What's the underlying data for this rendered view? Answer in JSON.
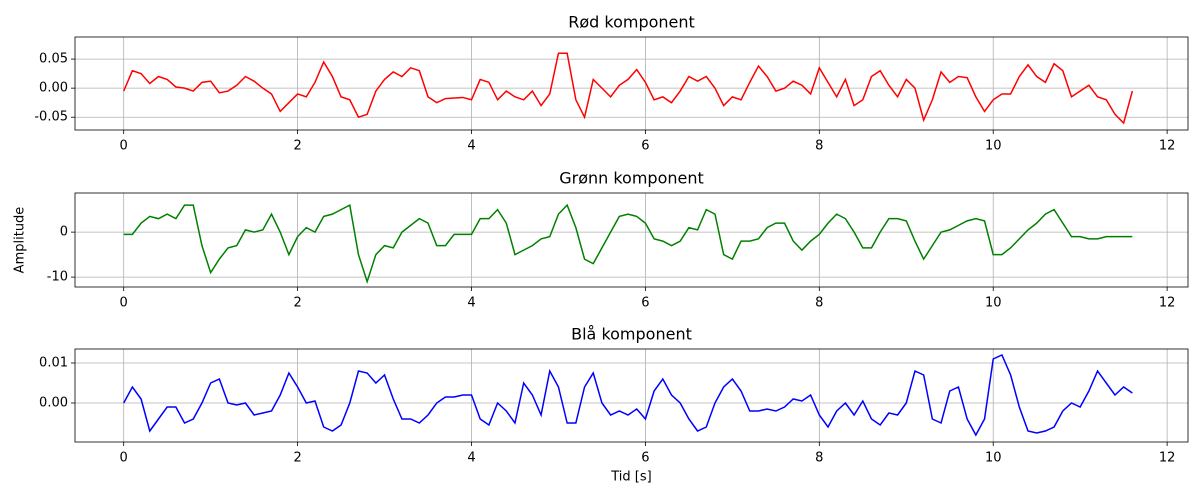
{
  "chart_data": [
    {
      "type": "line",
      "title": "Rød komponent",
      "x": [
        0,
        0.1,
        0.2,
        0.3,
        0.4,
        0.5,
        0.6,
        0.7,
        0.8,
        0.9,
        1,
        1.1,
        1.2,
        1.3,
        1.4,
        1.5,
        1.6,
        1.7,
        1.8,
        1.9,
        2,
        2.1,
        2.2,
        2.3,
        2.4,
        2.5,
        2.6,
        2.7,
        2.8,
        2.9,
        3,
        3.1,
        3.2,
        3.3,
        3.4,
        3.5,
        3.6,
        3.7,
        3.8,
        3.9,
        4,
        4.1,
        4.2,
        4.3,
        4.4,
        4.5,
        4.6,
        4.7,
        4.8,
        4.9,
        5,
        5.1,
        5.2,
        5.3,
        5.4,
        5.5,
        5.6,
        5.7,
        5.8,
        5.9,
        6,
        6.1,
        6.2,
        6.3,
        6.4,
        6.5,
        6.6,
        6.7,
        6.8,
        6.9,
        7,
        7.1,
        7.2,
        7.3,
        7.4,
        7.5,
        7.6,
        7.7,
        7.8,
        7.9,
        8,
        8.1,
        8.2,
        8.3,
        8.4,
        8.5,
        8.6,
        8.7,
        8.8,
        8.9,
        9,
        9.1,
        9.2,
        9.3,
        9.4,
        9.5,
        9.6,
        9.7,
        9.8,
        9.9,
        10,
        10.1,
        10.2,
        10.3,
        10.4,
        10.5,
        10.6,
        10.7,
        10.8,
        10.9,
        11,
        11.1,
        11.2,
        11.3,
        11.4,
        11.5,
        11.6
      ],
      "series": [
        {
          "color": "#ff0000",
          "values": [
            -0.005,
            0.03,
            0.025,
            0.008,
            0.02,
            0.015,
            0.002,
            0,
            -0.005,
            0.01,
            0.012,
            -0.008,
            -0.005,
            0.005,
            0.02,
            0.012,
            0,
            -0.01,
            -0.04,
            -0.025,
            -0.01,
            -0.015,
            0.01,
            0.045,
            0.02,
            -0.015,
            -0.02,
            -0.05,
            -0.045,
            -0.005,
            0.015,
            0.028,
            0.02,
            0.035,
            0.03,
            -0.015,
            -0.025,
            -0.018,
            -0.017,
            -0.016,
            -0.02,
            0.015,
            0.01,
            -0.02,
            -0.005,
            -0.015,
            -0.02,
            -0.005,
            -0.03,
            -0.01,
            0.06,
            0.06,
            -0.02,
            -0.05,
            0.015,
            0,
            -0.015,
            0.005,
            0.015,
            0.032,
            0.01,
            -0.02,
            -0.015,
            -0.025,
            -0.005,
            0.02,
            0.012,
            0.02,
            0,
            -0.03,
            -0.015,
            -0.02,
            0.01,
            0.038,
            0.02,
            -0.005,
            0,
            0.012,
            0.005,
            -0.01,
            0.035,
            0.01,
            -0.015,
            0.015,
            -0.03,
            -0.02,
            0.02,
            0.03,
            0.005,
            -0.015,
            0.015,
            0,
            -0.055,
            -0.02,
            0.028,
            0.01,
            0.02,
            0.018,
            -0.015,
            -0.04,
            -0.02,
            -0.01,
            -0.01,
            0.02,
            0.04,
            0.02,
            0.01,
            0.042,
            0.03,
            -0.015,
            -0.005,
            0.005,
            -0.015,
            -0.02,
            -0.045,
            -0.06,
            -0.005
          ]
        }
      ],
      "xlim": [
        -0.56,
        12.24
      ],
      "xticks": [
        0,
        2,
        4,
        6,
        8,
        10,
        12
      ],
      "ylim": [
        -0.072,
        0.088
      ],
      "yticks": [
        -0.05,
        {
          "value": 0,
          "label": "0.00"
        },
        0.05
      ],
      "grid": true
    },
    {
      "type": "line",
      "title": "Grønn komponent",
      "ylabel": "Amplitude",
      "x": [
        0,
        0.1,
        0.2,
        0.3,
        0.4,
        0.5,
        0.6,
        0.7,
        0.8,
        0.9,
        1,
        1.1,
        1.2,
        1.3,
        1.4,
        1.5,
        1.6,
        1.7,
        1.8,
        1.9,
        2,
        2.1,
        2.2,
        2.3,
        2.4,
        2.5,
        2.6,
        2.7,
        2.8,
        2.9,
        3,
        3.1,
        3.2,
        3.3,
        3.4,
        3.5,
        3.6,
        3.7,
        3.8,
        3.9,
        4,
        4.1,
        4.2,
        4.3,
        4.4,
        4.5,
        4.6,
        4.7,
        4.8,
        4.9,
        5,
        5.1,
        5.2,
        5.3,
        5.4,
        5.5,
        5.6,
        5.7,
        5.8,
        5.9,
        6,
        6.1,
        6.2,
        6.3,
        6.4,
        6.5,
        6.6,
        6.7,
        6.8,
        6.9,
        7,
        7.1,
        7.2,
        7.3,
        7.4,
        7.5,
        7.6,
        7.7,
        7.8,
        7.9,
        8,
        8.1,
        8.2,
        8.3,
        8.4,
        8.5,
        8.6,
        8.7,
        8.8,
        8.9,
        9,
        9.1,
        9.2,
        9.3,
        9.4,
        9.5,
        9.6,
        9.7,
        9.8,
        9.9,
        10,
        10.1,
        10.2,
        10.3,
        10.4,
        10.5,
        10.6,
        10.7,
        10.8,
        10.9,
        11,
        11.1,
        11.2,
        11.3,
        11.4,
        11.5,
        11.6
      ],
      "series": [
        {
          "color": "#008000",
          "values": [
            -0.5,
            -0.5,
            2,
            3.5,
            3,
            4,
            3,
            6,
            6,
            -3,
            -9,
            -6,
            -3.5,
            -3,
            0.5,
            0,
            0.5,
            4,
            0,
            -5,
            -1,
            1,
            0,
            3.5,
            4,
            5,
            6,
            -5,
            -11,
            -5,
            -3,
            -3.5,
            0,
            1.5,
            3,
            2,
            -3,
            -3,
            -0.5,
            -0.5,
            -0.5,
            3,
            3,
            5,
            2,
            -5,
            -4,
            -3,
            -1.5,
            -1,
            4,
            6,
            1,
            -6,
            -7,
            -3.5,
            0,
            3.5,
            4,
            3.5,
            2,
            -1.5,
            -2,
            -3,
            -2,
            1,
            0.5,
            5,
            4,
            -5,
            -6,
            -2,
            -2,
            -1.5,
            1,
            2,
            2,
            -2,
            -4,
            -2,
            -0.5,
            2,
            4,
            3,
            0,
            -3.5,
            -3.5,
            0,
            3,
            3,
            2.5,
            -2,
            -6,
            -3,
            0,
            0.5,
            1.5,
            2.5,
            3,
            2.5,
            -5,
            -5,
            -3.5,
            -1.5,
            0.5,
            2,
            4,
            5,
            2,
            -1,
            -1,
            -1.5,
            -1.5,
            -1,
            -1,
            -1,
            -1
          ]
        }
      ],
      "xlim": [
        -0.56,
        12.24
      ],
      "xticks": [
        0,
        2,
        4,
        6,
        8,
        10,
        12
      ],
      "ylim": [
        -12.2,
        8.7
      ],
      "yticks": [
        -10,
        0
      ],
      "grid": true
    },
    {
      "type": "line",
      "title": "Blå komponent",
      "xlabel": "Tid [s]",
      "x": [
        0,
        0.1,
        0.2,
        0.3,
        0.4,
        0.5,
        0.6,
        0.7,
        0.8,
        0.9,
        1,
        1.1,
        1.2,
        1.3,
        1.4,
        1.5,
        1.6,
        1.7,
        1.8,
        1.9,
        2,
        2.1,
        2.2,
        2.3,
        2.4,
        2.5,
        2.6,
        2.7,
        2.8,
        2.9,
        3,
        3.1,
        3.2,
        3.3,
        3.4,
        3.5,
        3.6,
        3.7,
        3.8,
        3.9,
        4,
        4.1,
        4.2,
        4.3,
        4.4,
        4.5,
        4.6,
        4.7,
        4.8,
        4.9,
        5,
        5.1,
        5.2,
        5.3,
        5.4,
        5.5,
        5.6,
        5.7,
        5.8,
        5.9,
        6,
        6.1,
        6.2,
        6.3,
        6.4,
        6.5,
        6.6,
        6.7,
        6.8,
        6.9,
        7,
        7.1,
        7.2,
        7.3,
        7.4,
        7.5,
        7.6,
        7.7,
        7.8,
        7.9,
        8,
        8.1,
        8.2,
        8.3,
        8.4,
        8.5,
        8.6,
        8.7,
        8.8,
        8.9,
        9,
        9.1,
        9.2,
        9.3,
        9.4,
        9.5,
        9.6,
        9.7,
        9.8,
        9.9,
        10,
        10.1,
        10.2,
        10.3,
        10.4,
        10.5,
        10.6,
        10.7,
        10.8,
        10.9,
        11,
        11.1,
        11.2,
        11.3,
        11.4,
        11.5,
        11.6
      ],
      "series": [
        {
          "color": "#0000ff",
          "values": [
            0,
            0.004,
            0.001,
            -0.007,
            -0.004,
            -0.001,
            -0.001,
            -0.005,
            -0.004,
            0,
            0.005,
            0.006,
            0,
            -0.0005,
            0,
            -0.003,
            -0.0025,
            -0.002,
            0.002,
            0.0075,
            0.004,
            0,
            0.0005,
            -0.006,
            -0.007,
            -0.0055,
            0,
            0.008,
            0.0075,
            0.005,
            0.007,
            0.001,
            -0.004,
            -0.004,
            -0.005,
            -0.003,
            0,
            0.0015,
            0.0015,
            0.002,
            0.002,
            -0.004,
            -0.0055,
            0,
            -0.002,
            -0.005,
            0.005,
            0.002,
            -0.003,
            0.008,
            0.004,
            -0.005,
            -0.005,
            0.004,
            0.0075,
            0,
            -0.003,
            -0.002,
            -0.003,
            -0.0015,
            -0.004,
            0.003,
            0.006,
            0.002,
            0,
            -0.004,
            -0.007,
            -0.006,
            0,
            0.004,
            0.006,
            0.003,
            -0.002,
            -0.002,
            -0.0015,
            -0.002,
            -0.001,
            0.001,
            0.0005,
            0.002,
            -0.003,
            -0.006,
            -0.002,
            0,
            -0.003,
            0.0005,
            -0.004,
            -0.0055,
            -0.0025,
            -0.003,
            0,
            0.008,
            0.007,
            -0.004,
            -0.005,
            0.003,
            0.004,
            -0.004,
            -0.008,
            -0.004,
            0.011,
            0.012,
            0.007,
            -0.001,
            -0.007,
            -0.0075,
            -0.007,
            -0.006,
            -0.002,
            0,
            -0.001,
            0.003,
            0.008,
            0.005,
            0.002,
            0.004,
            0.0025
          ]
        }
      ],
      "xlim": [
        -0.56,
        12.24
      ],
      "xticks": [
        0,
        2,
        4,
        6,
        8,
        10,
        12
      ],
      "ylim": [
        -0.00975,
        0.0135
      ],
      "yticks": [
        {
          "value": 0,
          "label": "0.00"
        },
        0.01
      ],
      "grid": true
    }
  ]
}
